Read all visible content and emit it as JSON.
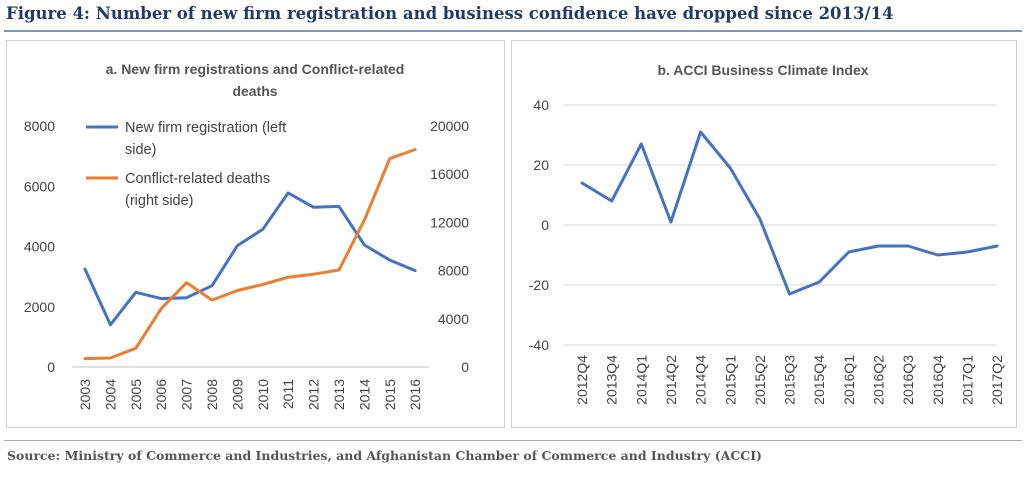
{
  "figure": {
    "title": "Figure 4: Number of new firm registration and business confidence have dropped since 2013/14",
    "source": "Source: Ministry of Commerce and Industries, and Afghanistan Chamber of Commerce and Industry (ACCI)"
  },
  "colors": {
    "blue": "#4472c4",
    "orange": "#ed7d31",
    "grid": "#d9d9d9",
    "axis": "#bfbfbf"
  },
  "chart_data": [
    {
      "type": "line",
      "title_lines": [
        "a. New firm registrations  and Conflict-related",
        "deaths"
      ],
      "categories": [
        "2003",
        "2004",
        "2005",
        "2006",
        "2007",
        "2008",
        "2009",
        "2010",
        "2011",
        "2012",
        "2013",
        "2014",
        "2015",
        "2016"
      ],
      "ylim_left": [
        0,
        8000
      ],
      "yticks_left": [
        0,
        2000,
        4000,
        6000,
        8000
      ],
      "ylim_right": [
        0,
        20000
      ],
      "yticks_right": [
        0,
        4000,
        8000,
        12000,
        16000,
        20000
      ],
      "grid": false,
      "legend_position": "top-left",
      "series": [
        {
          "name_lines": [
            "New firm registration (left",
            "side)"
          ],
          "axis": "left",
          "color": "#4472c4",
          "values": [
            3250,
            1400,
            2480,
            2270,
            2300,
            2700,
            4030,
            4570,
            5780,
            5300,
            5330,
            4050,
            3550,
            3200
          ]
        },
        {
          "name_lines": [
            "Conflict-related deaths",
            "(right side)"
          ],
          "axis": "right",
          "color": "#ed7d31",
          "values": [
            700,
            750,
            1550,
            4850,
            7000,
            5550,
            6350,
            6850,
            7450,
            7700,
            8050,
            12200,
            17300,
            18050
          ]
        }
      ]
    },
    {
      "type": "line",
      "title_lines": [
        "b. ACCI Business Climate Index"
      ],
      "categories": [
        "2012Q4",
        "2013Q4",
        "2014Q1",
        "2014Q2",
        "2014Q4",
        "2015Q1",
        "2015Q2",
        "2015Q3",
        "2015Q4",
        "2016Q1",
        "2016Q2",
        "2016Q3",
        "2016Q4",
        "2017Q1",
        "2017Q2"
      ],
      "ylim": [
        -40,
        40
      ],
      "yticks": [
        -40,
        -20,
        0,
        20,
        40
      ],
      "grid": true,
      "series": [
        {
          "color": "#4472c4",
          "values": [
            14,
            8,
            27,
            1,
            31,
            19,
            2,
            -23,
            -19,
            -9,
            -7,
            -7,
            -10,
            -9,
            -7
          ]
        }
      ]
    }
  ]
}
